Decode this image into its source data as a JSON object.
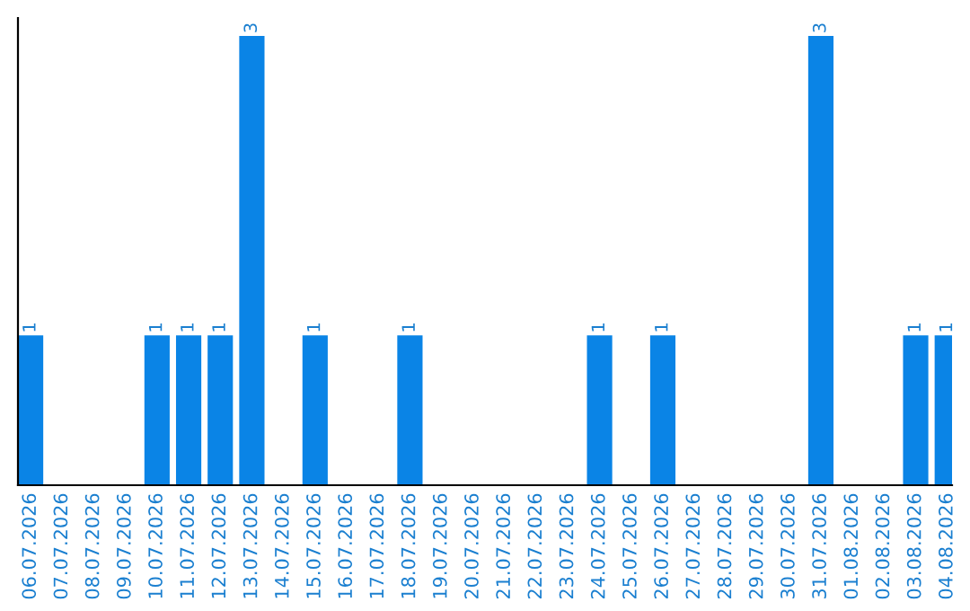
{
  "chart_data": {
    "type": "bar",
    "categories": [
      "06.07.2026",
      "07.07.2026",
      "08.07.2026",
      "09.07.2026",
      "10.07.2026",
      "11.07.2026",
      "12.07.2026",
      "13.07.2026",
      "14.07.2026",
      "15.07.2026",
      "16.07.2026",
      "17.07.2026",
      "18.07.2026",
      "19.07.2026",
      "20.07.2026",
      "21.07.2026",
      "22.07.2026",
      "23.07.2026",
      "24.07.2026",
      "25.07.2026",
      "26.07.2026",
      "27.07.2026",
      "28.07.2026",
      "29.07.2026",
      "30.07.2026",
      "31.07.2026",
      "01.08.2026",
      "02.08.2026",
      "03.08.2026",
      "04.08.2026"
    ],
    "values": [
      1,
      0,
      0,
      0,
      1,
      1,
      1,
      3,
      0,
      1,
      0,
      0,
      1,
      0,
      0,
      0,
      0,
      0,
      1,
      0,
      1,
      0,
      0,
      0,
      0,
      3,
      0,
      0,
      1,
      1
    ],
    "value_labels": [
      "1",
      null,
      null,
      null,
      "1",
      "1",
      "1",
      "3",
      null,
      "1",
      null,
      null,
      "1",
      null,
      null,
      null,
      null,
      null,
      "1",
      null,
      "1",
      null,
      null,
      null,
      null,
      "3",
      null,
      null,
      "1",
      "1"
    ],
    "color": "#0a84e6",
    "ylim": [
      0,
      3.12
    ],
    "tick_labels": "x",
    "grid": false,
    "legend": false
  }
}
